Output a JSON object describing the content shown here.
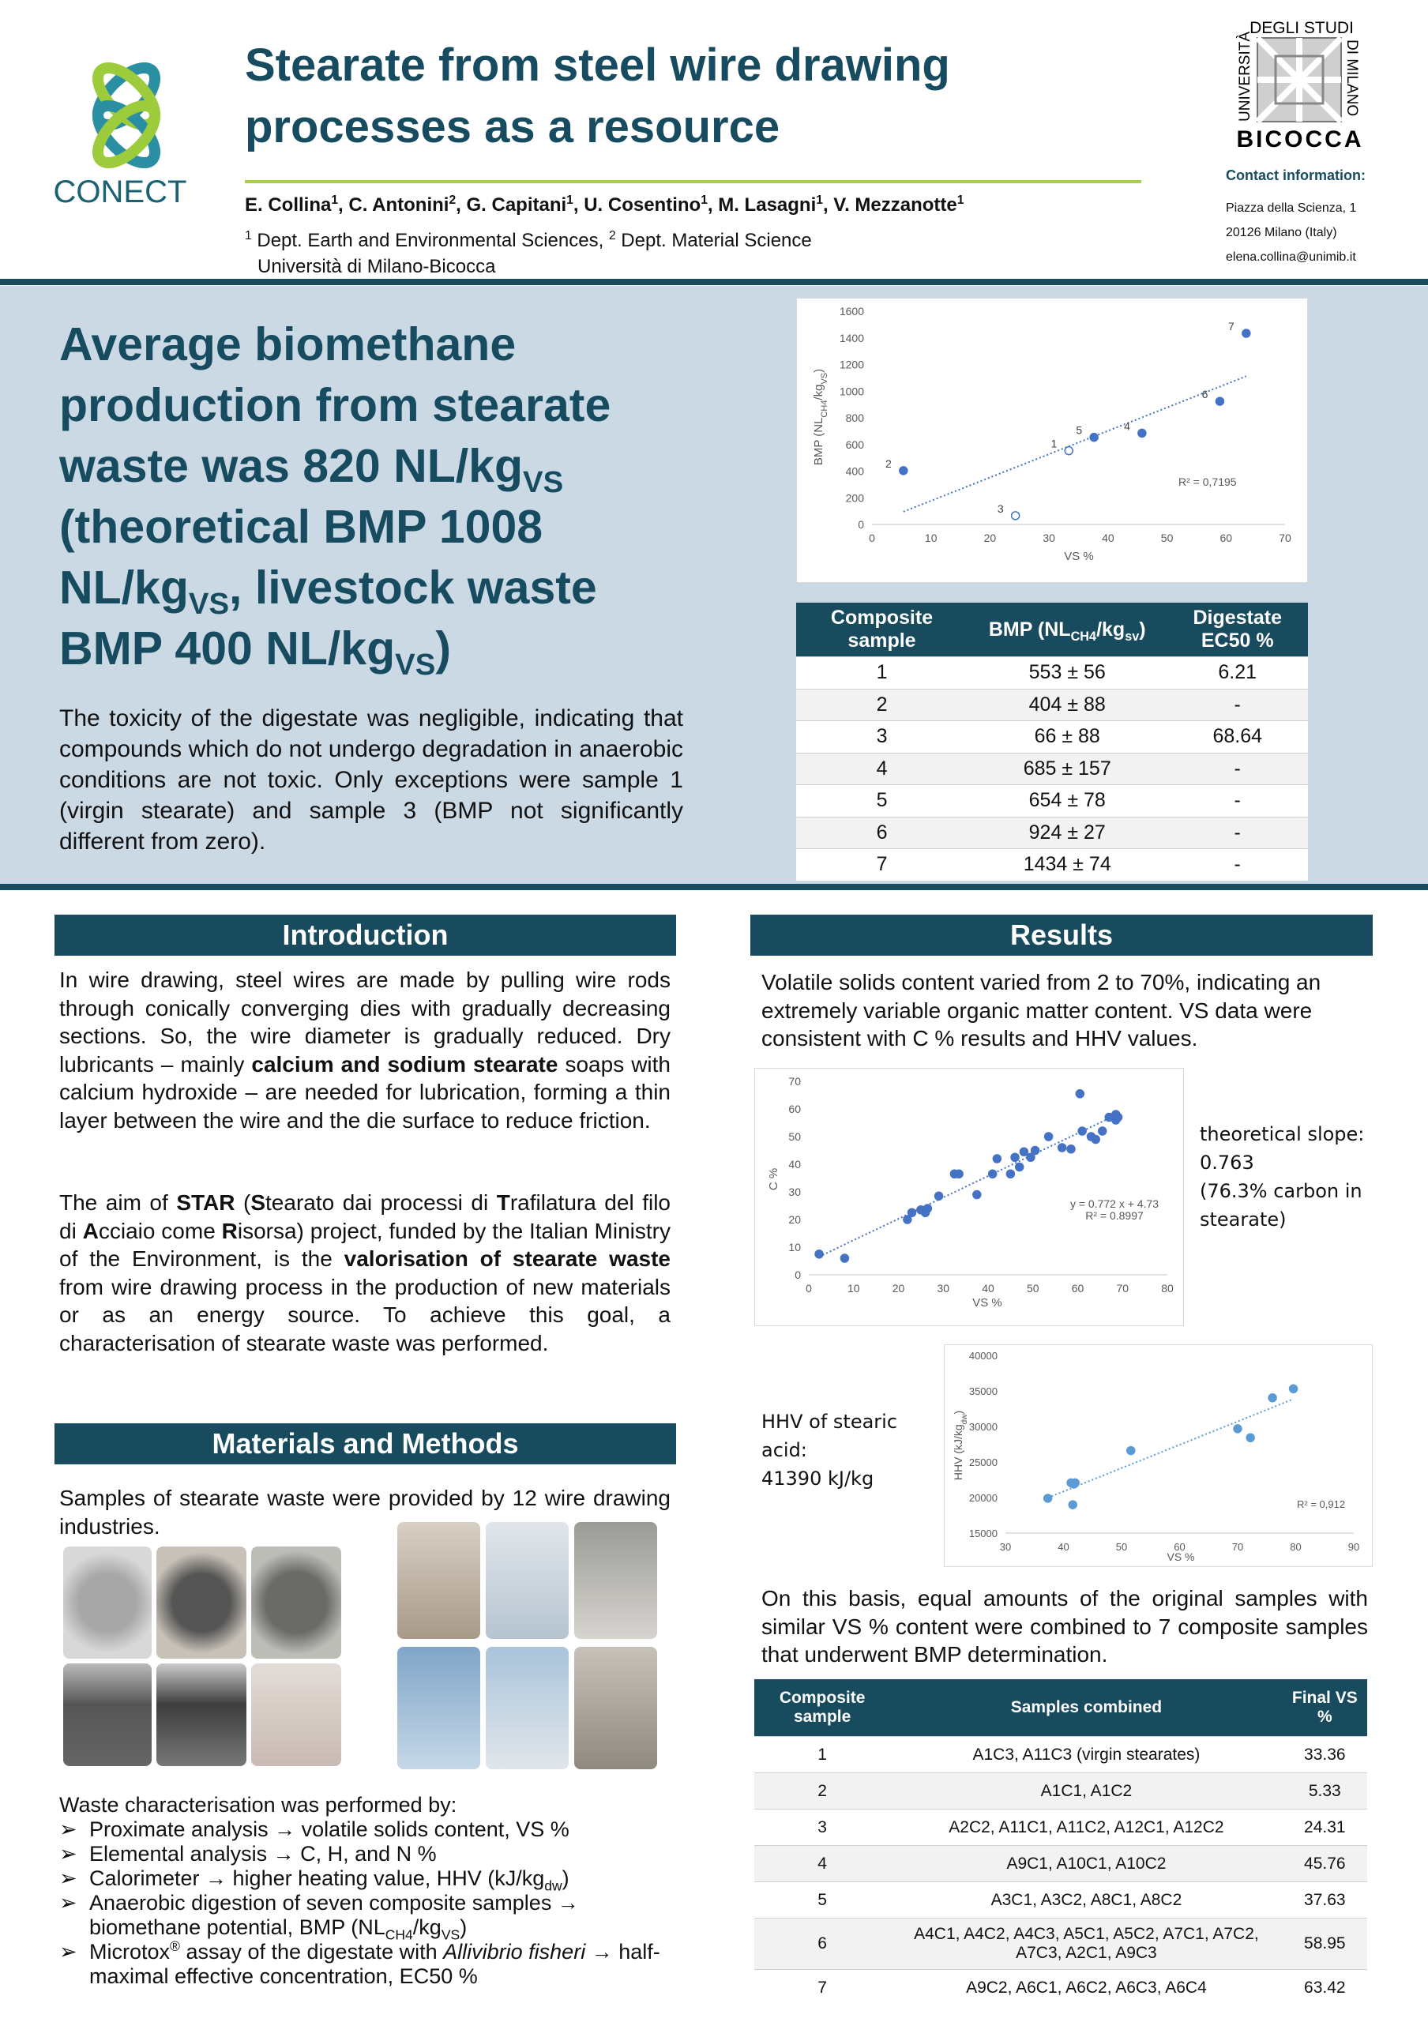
{
  "header": {
    "logo_left": "CONECT",
    "logo_right": {
      "top": "DEGLI STUDI",
      "left": "UNIVERSITÀ",
      "right": "DI MILANO",
      "bottom": "BICOCCA"
    },
    "title_lines": [
      "Stearate from steel wire drawing",
      "processes as a resource"
    ],
    "authors": [
      "E. Collina",
      {
        "sup": "1"
      },
      ", C. Antonini",
      {
        "sup": "2"
      },
      ", G. Capitani",
      {
        "sup": "1"
      },
      ", U. Cosentino",
      {
        "sup": "1"
      },
      ", M. Lasagni",
      {
        "sup": "1"
      },
      ", V. Mezzanotte",
      {
        "sup": "1"
      }
    ],
    "affiliations": [
      [
        {
          "sup": "1"
        },
        " Dept. Earth and Environmental Sciences, ",
        {
          "sup": "2"
        },
        " Dept. Material Science"
      ],
      [
        "Università di Milano-Bicocca"
      ]
    ],
    "contact_title": "Contact information:",
    "contact": [
      "Piazza della Scienza, 1",
      "20126 Milano (Italy)",
      "elena.collina@unimib.it"
    ]
  },
  "highlight": {
    "heading": [
      "Average biomethane production from stearate waste was 820 NL/kg",
      {
        "sub": "VS"
      },
      " (theoretical BMP 1008 NL/kg",
      {
        "sub": "VS"
      },
      ", livestock waste BMP 400 NL/kg",
      {
        "sub": "VS"
      },
      ")"
    ],
    "text": "The toxicity of the digestate was negligible, indicating that compounds which do not undergo degradation in anaerobic conditions are not toxic. Only exceptions were sample 1 (virgin stearate) and sample 3 (BMP not significantly different from zero)."
  },
  "table1": {
    "header": [
      "Composite sample",
      [
        "BMP (NL",
        {
          "sub": "CH4"
        },
        "/kg",
        {
          "sub": "sv"
        },
        ")"
      ],
      "Digestate EC50 %"
    ],
    "rows": [
      [
        "1",
        "553 ± 56",
        "6.21"
      ],
      [
        "2",
        "404 ± 88",
        "-"
      ],
      [
        "3",
        "66 ± 88",
        "68.64"
      ],
      [
        "4",
        "685 ± 157",
        "-"
      ],
      [
        "5",
        "654 ± 78",
        "-"
      ],
      [
        "6",
        "924 ± 27",
        "-"
      ],
      [
        "7",
        "1434 ± 74",
        "-"
      ]
    ]
  },
  "introduction": {
    "title": "Introduction",
    "paragraphs": [
      [
        "In wire drawing, steel wires are made by pulling wire rods through conically converging dies with gradually decreasing sections. So, the wire diameter is gradually reduced. Dry lubricants – mainly ",
        {
          "b": "calcium and sodium stearate"
        },
        " soaps with calcium hydroxide – are needed for lubrication, forming a thin layer between the wire and the die surface to reduce friction."
      ],
      [
        "The aim of ",
        {
          "b": "STAR"
        },
        " (",
        {
          "b": "S"
        },
        "tearato dai processi di ",
        {
          "b": "T"
        },
        "rafilatura del filo di ",
        {
          "b": "A"
        },
        "cciaio come ",
        {
          "b": "R"
        },
        "isorsa) project, funded by the Italian Ministry of the Environment, is the ",
        {
          "b": "valorisation of stearate waste"
        },
        " from wire drawing process in the production of new materials or as an energy source. To achieve this goal, a characterisation of stearate waste was performed."
      ]
    ]
  },
  "methods": {
    "title": "Materials and Methods",
    "text": "Samples of stearate waste were provided by 12 wire drawing industries.",
    "list_title": "Waste characterisation was performed by:",
    "items": [
      [
        "Proximate analysis → volatile solids content, VS %"
      ],
      [
        "Elemental analysis → C, H, and N %"
      ],
      [
        "Calorimeter → higher heating value, HHV (kJ/kg",
        {
          "sub": "dw"
        },
        ")"
      ],
      [
        "Anaerobic digestion of seven composite samples → biomethane potential, BMP (NL",
        {
          "sub": "CH4"
        },
        "/kg",
        {
          "sub": "VS"
        },
        ")"
      ],
      [
        "Microtox",
        {
          "sup": "®"
        },
        " assay of the digestate with ",
        {
          "i": "Allivibrio fisheri"
        },
        " → half-maximal effective concentration, EC50 %"
      ]
    ]
  },
  "results": {
    "title": "Results",
    "paragraphs": [
      "Volatile solids content varied from 2 to 70%, indicating an extremely variable organic matter content. VS data were consistent with C % results and HHV values.",
      "On this basis, equal amounts of the original samples with similar VS % content were combined to 7 composite samples that underwent BMP determination."
    ],
    "slope_note": [
      "theoretical slope:",
      "0.763",
      "(76.3% carbon in",
      "stearate)"
    ],
    "hhv_note": [
      "HHV of stearic",
      "acid:",
      "41390 kJ/kg"
    ]
  },
  "table2": {
    "header": [
      "Composite sample",
      "Samples combined",
      "Final VS %"
    ],
    "rows": [
      [
        "1",
        "A1C3, A11C3 (virgin stearates)",
        "33.36"
      ],
      [
        "2",
        "A1C1, A1C2",
        "5.33"
      ],
      [
        "3",
        "A2C2, A11C1, A11C2, A12C1, A12C2",
        "24.31"
      ],
      [
        "4",
        "A9C1, A10C1, A10C2",
        "45.76"
      ],
      [
        "5",
        "A3C1, A3C2, A8C1, A8C2",
        "37.63"
      ],
      [
        "6",
        "A4C1, A4C2, A4C3, A5C1, A5C2, A7C1, A7C2, A7C3, A2C1, A9C3",
        "58.95"
      ],
      [
        "7",
        "A9C2, A6C1, A6C2, A6C3, A6C4",
        "63.42"
      ]
    ]
  },
  "chart_data": [
    {
      "type": "scatter",
      "x": [
        33.36,
        5.33,
        24.31,
        45.76,
        37.63,
        58.95,
        63.42
      ],
      "values": [
        553,
        404,
        66,
        685,
        654,
        924,
        1434
      ],
      "labels": [
        "1",
        "2",
        "3",
        "4",
        "5",
        "6",
        "7"
      ],
      "hollow": [
        true,
        false,
        true,
        false,
        false,
        false,
        false
      ],
      "color": "#4472c4",
      "trendline": "linear",
      "annotations": [
        "R² = 0,7195"
      ],
      "x_label": "VS %",
      "y_label": [
        "BMP (NL",
        {
          "sub": "CH4"
        },
        "/kg",
        {
          "sub": "VS"
        },
        ")"
      ],
      "xlim": [
        0,
        70
      ],
      "ylim": [
        0,
        1600
      ],
      "xticks": [
        0,
        10,
        20,
        30,
        40,
        50,
        60,
        70
      ],
      "yticks": [
        0,
        200,
        400,
        600,
        800,
        1000,
        1200,
        1400,
        1600
      ]
    },
    {
      "type": "scatter",
      "x": [
        2.3,
        8,
        22,
        23,
        25,
        26,
        26.5,
        29,
        32.5,
        33.5,
        37.5,
        41,
        42,
        45,
        46,
        47,
        48,
        49.5,
        50.5,
        53.5,
        56.5,
        58.5,
        60.5,
        61,
        63,
        64,
        65.5,
        67,
        68.5,
        68.5,
        69
      ],
      "values": [
        7.5,
        6,
        20,
        22.5,
        23.5,
        22.5,
        24,
        28.5,
        36.5,
        36.5,
        29,
        36.5,
        42,
        36.5,
        42.5,
        39,
        44.5,
        42.5,
        45,
        50,
        46,
        45.5,
        65.5,
        52,
        50,
        49,
        52,
        57,
        56,
        58,
        57
      ],
      "color": "#4472c4",
      "trendline": "linear",
      "annotations": [
        "y = 0.772 x + 4.73",
        "R² = 0.8997"
      ],
      "x_label": "VS %",
      "y_label": [
        "C %"
      ],
      "xlim": [
        0,
        80
      ],
      "ylim": [
        0,
        70
      ],
      "xticks": [
        0,
        10,
        20,
        30,
        40,
        50,
        60,
        70,
        80
      ],
      "yticks": [
        0,
        10,
        20,
        30,
        40,
        50,
        60,
        70
      ]
    },
    {
      "type": "scatter",
      "x": [
        37.3,
        41.3,
        41.8,
        42,
        41.6,
        51.6,
        70,
        72.2,
        76,
        79.6
      ],
      "values": [
        19890,
        22070,
        21900,
        22070,
        18990,
        26600,
        29680,
        28410,
        34030,
        35300
      ],
      "color": "#5b9bd5",
      "trendline": "linear",
      "annotations": [
        "R² = 0,912"
      ],
      "x_label": "VS %",
      "y_label": [
        "HHV (kJ/kg",
        {
          "sub": "dw"
        },
        ")"
      ],
      "xlim": [
        30,
        90
      ],
      "ylim": [
        15000,
        40000
      ],
      "xticks": [
        30,
        40,
        50,
        60,
        70,
        80,
        90
      ],
      "yticks": [
        15000,
        20000,
        25000,
        30000,
        35000,
        40000
      ]
    }
  ]
}
